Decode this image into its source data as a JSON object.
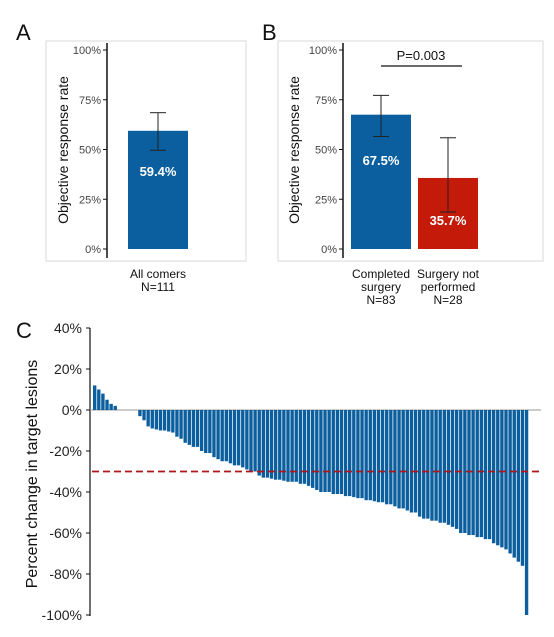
{
  "colors": {
    "blue": "#0b5f9e",
    "red": "#c41a0a",
    "refline": "#b0161a"
  },
  "chart_data": [
    {
      "panel": "A",
      "type": "bar",
      "ylabel": "Objective response rate",
      "ylim": [
        0,
        100
      ],
      "yticks": [
        "0%",
        "25%",
        "50%",
        "75%",
        "100%"
      ],
      "categories": [
        [
          "All comers",
          "N=111"
        ]
      ],
      "values": [
        59.4
      ],
      "error_low": [
        49.6
      ],
      "error_high": [
        68.5
      ],
      "labels": [
        "59.4%"
      ]
    },
    {
      "panel": "B",
      "type": "bar",
      "ylabel": "Objective response rate",
      "ylim": [
        0,
        100
      ],
      "yticks": [
        "0%",
        "25%",
        "50%",
        "75%",
        "100%"
      ],
      "categories": [
        [
          "Completed",
          "surgery",
          "N=83"
        ],
        [
          "Surgery not",
          "performed",
          "N=28"
        ]
      ],
      "values": [
        67.5,
        35.7
      ],
      "error_low": [
        56.5,
        18.6
      ],
      "error_high": [
        77.2,
        55.9
      ],
      "labels": [
        "67.5%",
        "35.7%"
      ],
      "annotation": "P=0.003"
    },
    {
      "panel": "C",
      "type": "bar",
      "subtype": "waterfall",
      "ylabel": "Percent change in target lesions",
      "ylim": [
        -100,
        40
      ],
      "yticks": [
        "-100%",
        "-80%",
        "-60%",
        "-40%",
        "-20%",
        "0%",
        "20%",
        "40%"
      ],
      "reference_line": -30,
      "values": [
        12,
        10,
        8,
        5,
        3,
        2,
        0,
        0,
        0,
        0,
        0,
        -3,
        -5,
        -8,
        -9,
        -9.5,
        -10,
        -10,
        -10.5,
        -11,
        -13,
        -14,
        -16,
        -17,
        -18,
        -18,
        -20,
        -21,
        -21,
        -23,
        -24,
        -25,
        -25,
        -26,
        -27,
        -27,
        -28,
        -29,
        -30,
        -30,
        -32,
        -33,
        -33,
        -33.5,
        -34,
        -34,
        -34.5,
        -35,
        -35,
        -35,
        -36,
        -36,
        -37,
        -38,
        -39,
        -40,
        -40,
        -40,
        -41,
        -41,
        -41,
        -42,
        -42,
        -42.5,
        -43,
        -43,
        -44,
        -44,
        -44.5,
        -45,
        -45,
        -46,
        -46,
        -47,
        -48,
        -48,
        -49,
        -50,
        -50,
        -52,
        -53,
        -53,
        -54,
        -54,
        -55,
        -55,
        -56,
        -57,
        -58,
        -60,
        -60,
        -61,
        -61,
        -62,
        -62,
        -63,
        -63,
        -65,
        -66,
        -67,
        -68,
        -70,
        -72,
        -74,
        -76,
        -100
      ]
    }
  ]
}
